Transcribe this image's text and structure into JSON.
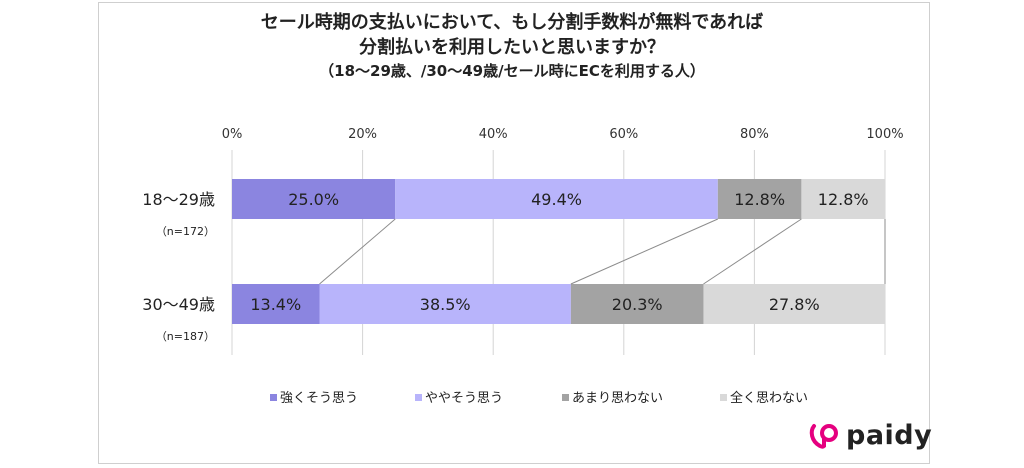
{
  "title_line1": "セール時期の支払いにおいて、もし分割手数料が無料であれば",
  "title_line2": "分割払いを利用したいと思いますか？",
  "subtitle": "（18～29歳、/30～49歳/セール時にECを利用する人）",
  "brand": "paidy",
  "chart_data": {
    "type": "bar",
    "orientation": "horizontal",
    "stacked": true,
    "xlim": [
      0,
      100
    ],
    "x_ticks": [
      "0%",
      "20%",
      "40%",
      "60%",
      "80%",
      "100%"
    ],
    "categories": [
      "18～29歳",
      "30～49歳"
    ],
    "category_notes": [
      "（n=172）",
      "（n=187）"
    ],
    "series": [
      {
        "name": "強くそう思う",
        "color": "#8b85e0",
        "values": [
          25.0,
          13.4
        ],
        "labels": [
          "25.0%",
          "13.4%"
        ]
      },
      {
        "name": "ややそう思う",
        "color": "#b8b4fb",
        "values": [
          49.4,
          38.5
        ],
        "labels": [
          "49.4%",
          "38.5%"
        ]
      },
      {
        "name": "あまり思わない",
        "color": "#a3a3a3",
        "values": [
          12.8,
          20.3
        ],
        "labels": [
          "12.8%",
          "20.3%"
        ]
      },
      {
        "name": "全く思わない",
        "color": "#d9d9d9",
        "values": [
          12.8,
          27.8
        ],
        "labels": [
          "12.8%",
          "27.8%"
        ]
      }
    ],
    "legend_position": "bottom",
    "grid": true
  }
}
